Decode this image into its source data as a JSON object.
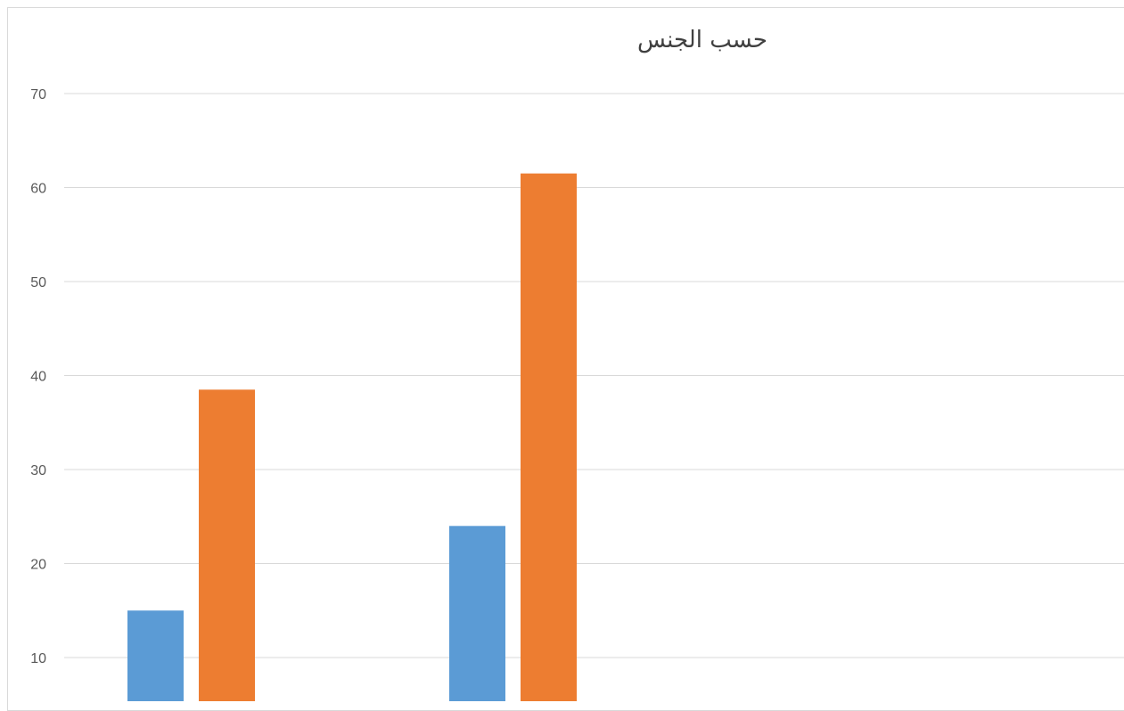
{
  "chart_data": {
    "type": "bar",
    "title": "حسب الجنس",
    "xlabel": "",
    "ylabel": "",
    "categories": [
      "",
      ""
    ],
    "series": [
      {
        "color": "#5b9bd5",
        "values": [
          15,
          24
        ]
      },
      {
        "color": "#ed7d31",
        "values": [
          38.5,
          61.5
        ]
      }
    ],
    "yticks": [
      10,
      20,
      30,
      40,
      50,
      60,
      70
    ],
    "ylim": [
      10,
      70
    ],
    "grid": true,
    "legend": "none"
  }
}
